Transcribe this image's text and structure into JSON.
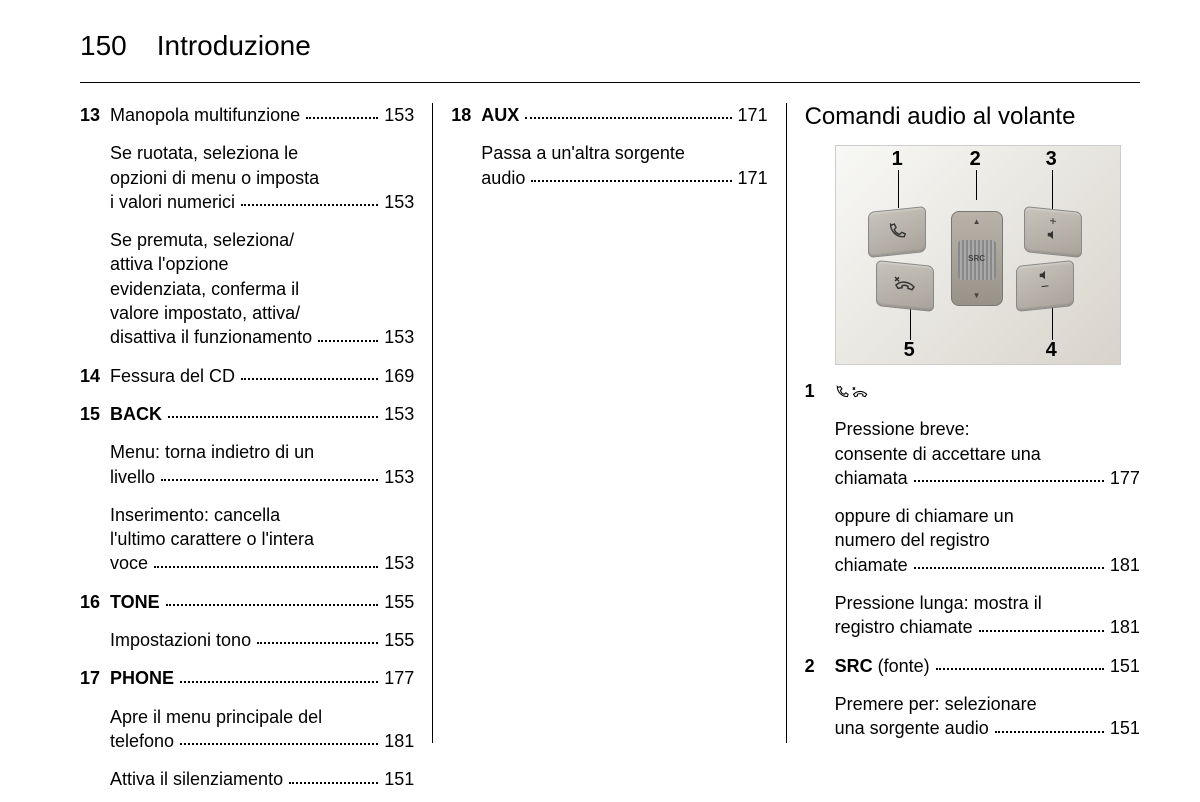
{
  "page": {
    "number": "150",
    "title": "Introduzione"
  },
  "col1": [
    {
      "num": "13",
      "label": "Manopola multifunzione",
      "ref": "153",
      "bold": false,
      "subs": [
        {
          "lines": [
            "Se ruotata, seleziona le",
            "opzioni di menu o imposta",
            "i valori numerici"
          ],
          "ref": "153"
        },
        {
          "lines": [
            "Se premuta, seleziona/",
            "attiva l'opzione",
            "evidenziata, conferma il",
            "valore impostato, attiva/",
            "disattiva il funzionamento"
          ],
          "ref": "153"
        }
      ]
    },
    {
      "num": "14",
      "label": "Fessura del CD",
      "ref": "169",
      "bold": false,
      "subs": []
    },
    {
      "num": "15",
      "label": "BACK",
      "ref": "153",
      "bold": true,
      "subs": [
        {
          "lines": [
            "Menu: torna indietro di un",
            "livello"
          ],
          "ref": "153"
        },
        {
          "lines": [
            "Inserimento: cancella",
            "l'ultimo carattere o l'intera",
            "voce"
          ],
          "ref": "153"
        }
      ]
    },
    {
      "num": "16",
      "label": "TONE",
      "ref": "155",
      "bold": true,
      "subs": [
        {
          "lines": [
            "Impostazioni tono"
          ],
          "ref": "155"
        }
      ]
    },
    {
      "num": "17",
      "label": "PHONE",
      "ref": "177",
      "bold": true,
      "subs": [
        {
          "lines": [
            "Apre il menu principale del",
            "telefono"
          ],
          "ref": "181"
        },
        {
          "lines": [
            "Attiva il silenziamento"
          ],
          "ref": "151"
        }
      ]
    }
  ],
  "col2": [
    {
      "num": "18",
      "label": "AUX",
      "ref": "171",
      "bold": true,
      "subs": [
        {
          "lines": [
            "Passa a un'altra sorgente",
            "audio"
          ],
          "ref": "171"
        }
      ]
    }
  ],
  "col3": {
    "heading": "Comandi audio al volante",
    "figure": {
      "labels": {
        "top1": "1",
        "top2": "2",
        "top3": "3",
        "bot5": "5",
        "bot4": "4"
      },
      "src": "SRC"
    },
    "items": [
      {
        "num": "1",
        "icon": "phone",
        "subs": [
          {
            "lines": [
              "Pressione breve:",
              "consente di accettare una",
              "chiamata"
            ],
            "ref": "177"
          },
          {
            "lines": [
              "oppure di chiamare un",
              "numero del registro",
              "chiamate"
            ],
            "ref": "181"
          },
          {
            "lines": [
              "Pressione lunga: mostra il",
              "registro chiamate"
            ],
            "ref": "181"
          }
        ]
      },
      {
        "num": "2",
        "label": "SRC",
        "suffix": "(fonte)",
        "bold": true,
        "ref": "151",
        "subs": [
          {
            "lines": [
              "Premere per: selezionare",
              "una sorgente audio"
            ],
            "ref": "151"
          }
        ]
      }
    ]
  }
}
